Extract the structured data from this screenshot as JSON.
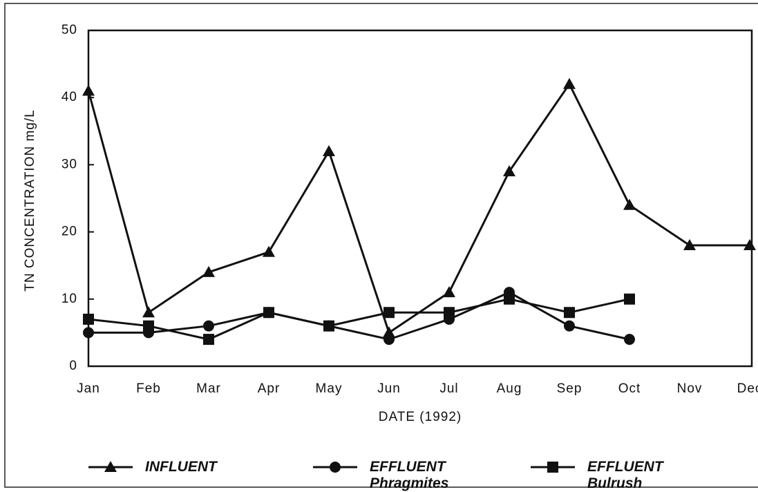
{
  "chart_data": {
    "type": "line",
    "x_label": "DATE (1992)",
    "y_label": "TN CONCENTRATION mg/L",
    "categories": [
      "Jan",
      "Feb",
      "Mar",
      "Apr",
      "May",
      "Jun",
      "Jul",
      "Aug",
      "Sep",
      "Oct",
      "Nov",
      "Dec"
    ],
    "series": [
      {
        "name": "INFLUENT",
        "color": "#111111",
        "marker": "triangle",
        "values": [
          41,
          8,
          14,
          17,
          32,
          5,
          11,
          29,
          42,
          24,
          18,
          18
        ]
      },
      {
        "name": "EFFLUENT Phragmites",
        "color": "#111111",
        "marker": "circle",
        "values": [
          5,
          5,
          6,
          8,
          6,
          4,
          7,
          11,
          6,
          4,
          null,
          null
        ]
      },
      {
        "name": "EFFLUENT Bulrush",
        "color": "#111111",
        "marker": "square",
        "values": [
          7,
          6,
          4,
          8,
          6,
          8,
          8,
          10,
          8,
          10,
          null,
          null
        ]
      }
    ],
    "ylim": [
      0,
      50
    ],
    "yticks": [
      0,
      10,
      20,
      30,
      40,
      50
    ],
    "legend": "bottom"
  }
}
